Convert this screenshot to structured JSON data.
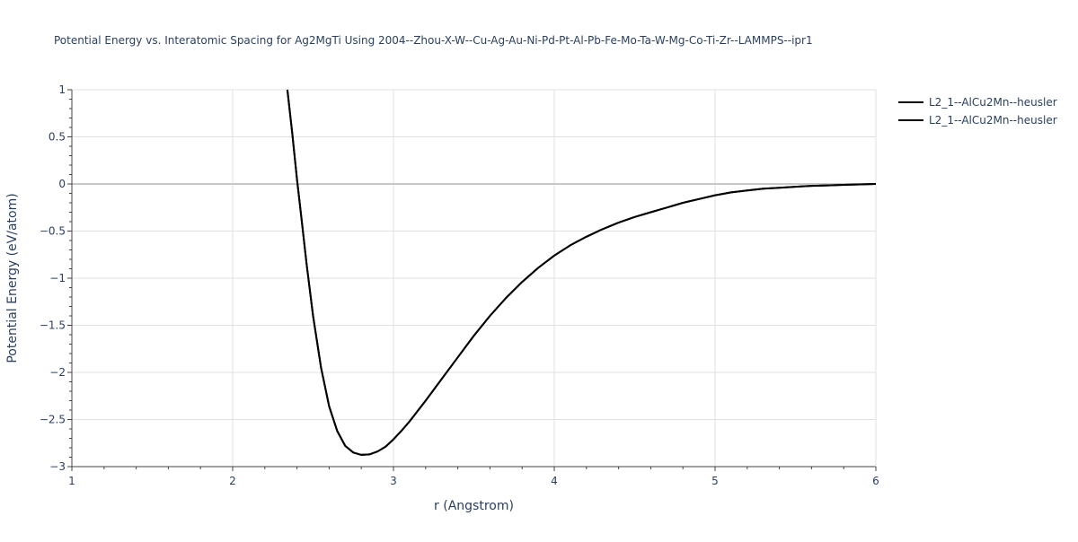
{
  "chart_data": {
    "type": "line",
    "title": "Potential Energy vs. Interatomic Spacing for Ag2MgTi Using 2004--Zhou-X-W--Cu-Ag-Au-Ni-Pd-Pt-Al-Pb-Fe-Mo-Ta-W-Mg-Co-Ti-Zr--LAMMPS--ipr1",
    "xlabel": "r (Angstrom)",
    "ylabel": "Potential Energy (eV/atom)",
    "xlim": [
      1,
      6
    ],
    "ylim": [
      -3,
      1
    ],
    "x_ticks": [
      1,
      2,
      3,
      4,
      5,
      6
    ],
    "x_tick_labels": [
      "1",
      "2",
      "3",
      "4",
      "5",
      "6"
    ],
    "y_ticks": [
      1,
      0.5,
      0,
      -0.5,
      -1,
      -1.5,
      -2,
      -2.5,
      -3
    ],
    "y_tick_labels": [
      "1",
      "0.5",
      "0",
      "−0.5",
      "−1",
      "−1.5",
      "−2",
      "−2.5",
      "−3"
    ],
    "grid": true,
    "legend_position": "top-right",
    "line_color": "#000000",
    "series": [
      {
        "name": "L2_1--AlCu2Mn--heusler",
        "x": [
          2.34,
          2.37,
          2.4,
          2.43,
          2.46,
          2.5,
          2.55,
          2.6,
          2.65,
          2.7,
          2.75,
          2.8,
          2.85,
          2.9,
          2.95,
          3.0,
          3.05,
          3.1,
          3.15,
          3.2,
          3.3,
          3.4,
          3.5,
          3.6,
          3.7,
          3.8,
          3.9,
          4.0,
          4.1,
          4.2,
          4.3,
          4.4,
          4.5,
          4.6,
          4.7,
          4.8,
          4.9,
          5.0,
          5.1,
          5.2,
          5.3,
          5.4,
          5.5,
          5.6,
          5.7,
          5.8,
          5.9,
          6.0
        ],
        "y": [
          1.0,
          0.55,
          0.05,
          -0.4,
          -0.85,
          -1.4,
          -1.95,
          -2.36,
          -2.62,
          -2.78,
          -2.85,
          -2.875,
          -2.87,
          -2.84,
          -2.79,
          -2.71,
          -2.62,
          -2.52,
          -2.41,
          -2.3,
          -2.07,
          -1.84,
          -1.61,
          -1.4,
          -1.21,
          -1.04,
          -0.89,
          -0.76,
          -0.65,
          -0.56,
          -0.48,
          -0.41,
          -0.35,
          -0.3,
          -0.25,
          -0.2,
          -0.16,
          -0.12,
          -0.09,
          -0.07,
          -0.05,
          -0.04,
          -0.03,
          -0.02,
          -0.015,
          -0.01,
          -0.005,
          0.0
        ]
      },
      {
        "name": "L2_1--AlCu2Mn--heusler",
        "x": [
          2.34,
          2.37,
          2.4,
          2.43,
          2.46,
          2.5,
          2.55,
          2.6,
          2.65,
          2.7,
          2.75,
          2.8,
          2.85,
          2.9,
          2.95,
          3.0,
          3.05,
          3.1,
          3.15,
          3.2,
          3.3,
          3.4,
          3.5,
          3.6,
          3.7,
          3.8,
          3.9,
          4.0,
          4.1,
          4.2,
          4.3,
          4.4,
          4.5,
          4.6,
          4.7,
          4.8,
          4.9,
          5.0,
          5.1,
          5.2,
          5.3,
          5.4,
          5.5,
          5.6,
          5.7,
          5.8,
          5.9,
          6.0
        ],
        "y": [
          1.0,
          0.55,
          0.05,
          -0.4,
          -0.85,
          -1.4,
          -1.95,
          -2.36,
          -2.62,
          -2.78,
          -2.85,
          -2.875,
          -2.87,
          -2.84,
          -2.79,
          -2.71,
          -2.62,
          -2.52,
          -2.41,
          -2.3,
          -2.07,
          -1.84,
          -1.61,
          -1.4,
          -1.21,
          -1.04,
          -0.89,
          -0.76,
          -0.65,
          -0.56,
          -0.48,
          -0.41,
          -0.35,
          -0.3,
          -0.25,
          -0.2,
          -0.16,
          -0.12,
          -0.09,
          -0.07,
          -0.05,
          -0.04,
          -0.03,
          -0.02,
          -0.015,
          -0.01,
          -0.005,
          0.0
        ]
      }
    ]
  }
}
